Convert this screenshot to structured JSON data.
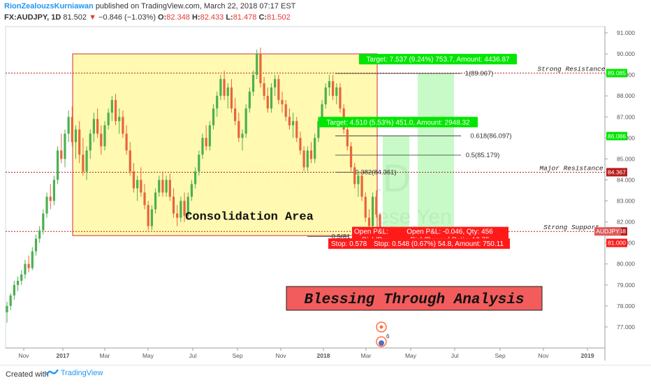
{
  "header": {
    "user": "RionZealouzsKurniawan",
    "published": "published on TradingView.com, March 22, 2018 07:17 EST",
    "symbol": "FX:AUDJPY, 1D",
    "last": "81.502",
    "change": "−0.846 (−1.03%)",
    "o_label": "O:",
    "o": "82.348",
    "h_label": "H:",
    "h": "82.433",
    "l_label": "L:",
    "l": "81.478",
    "c_label": "C:",
    "c": "81.502"
  },
  "footer": {
    "created": "Created with",
    "brand": "TradingView"
  },
  "colors": {
    "up": "#4caf50",
    "down": "#e8643c",
    "consolidation_fill": "#fff8a8",
    "consolidation_border": "#d32f2f",
    "target": "#00e600",
    "stop": "#ff1a1a",
    "resistance_line": "#b71c1c"
  },
  "chart_data": {
    "type": "candlestick",
    "symbol": "AUDJPY",
    "timeframe": "1D",
    "watermark": "AUDJPY, 1D",
    "watermark_sub": "Australian Dollar / Japanese Yen",
    "ylim": [
      76.0,
      91.3
    ],
    "y_ticks": [
      "91.000",
      "90.000",
      "89.000",
      "88.000",
      "87.000",
      "86.000",
      "85.000",
      "84.000",
      "83.000",
      "82.000",
      "81.000",
      "80.000",
      "79.000",
      "78.000",
      "77.000"
    ],
    "x_ticks": [
      "Nov",
      "2017",
      "Mar",
      "May",
      "Jul",
      "Sep",
      "Nov",
      "2018",
      "Mar",
      "May",
      "Jul",
      "Sep",
      "Nov",
      "2019"
    ],
    "ohlc_approx": [
      [
        77.7,
        78.2,
        77.2,
        78.0
      ],
      [
        78.0,
        78.6,
        77.8,
        78.5
      ],
      [
        78.5,
        79.2,
        78.3,
        79.0
      ],
      [
        79.0,
        79.4,
        78.7,
        79.2
      ],
      [
        79.2,
        79.7,
        79.0,
        79.5
      ],
      [
        79.5,
        80.2,
        79.3,
        80.0
      ],
      [
        80.0,
        80.4,
        79.6,
        79.8
      ],
      [
        79.8,
        80.8,
        79.7,
        80.6
      ],
      [
        80.6,
        81.4,
        80.4,
        81.2
      ],
      [
        81.2,
        81.8,
        81.0,
        81.6
      ],
      [
        81.6,
        82.6,
        81.4,
        82.4
      ],
      [
        82.4,
        83.4,
        82.2,
        83.2
      ],
      [
        83.2,
        83.8,
        82.6,
        83.0
      ],
      [
        83.0,
        84.2,
        82.8,
        84.0
      ],
      [
        84.0,
        85.6,
        83.8,
        85.4
      ],
      [
        85.4,
        86.2,
        84.8,
        85.0
      ],
      [
        85.0,
        86.4,
        84.6,
        86.2
      ],
      [
        86.2,
        87.3,
        85.8,
        87.0
      ],
      [
        87.0,
        87.5,
        85.6,
        85.8
      ],
      [
        85.8,
        86.6,
        85.0,
        86.4
      ],
      [
        86.4,
        86.8,
        84.8,
        85.2
      ],
      [
        85.2,
        86.0,
        84.2,
        84.4
      ],
      [
        84.4,
        85.6,
        84.0,
        85.4
      ],
      [
        85.4,
        86.4,
        85.0,
        86.2
      ],
      [
        86.2,
        87.2,
        85.8,
        86.9
      ],
      [
        86.9,
        87.4,
        86.0,
        86.2
      ],
      [
        86.2,
        86.6,
        85.2,
        85.6
      ],
      [
        85.6,
        86.8,
        85.4,
        86.6
      ],
      [
        86.6,
        87.4,
        86.4,
        87.2
      ],
      [
        87.2,
        88.0,
        86.8,
        87.8
      ],
      [
        87.8,
        88.1,
        86.6,
        86.8
      ],
      [
        86.8,
        87.4,
        86.2,
        87.0
      ],
      [
        87.0,
        87.3,
        86.0,
        86.2
      ],
      [
        86.2,
        86.6,
        85.2,
        85.4
      ],
      [
        85.4,
        85.8,
        84.2,
        84.4
      ],
      [
        84.4,
        84.8,
        83.4,
        83.6
      ],
      [
        83.6,
        84.2,
        83.0,
        84.0
      ],
      [
        84.0,
        84.6,
        83.2,
        83.4
      ],
      [
        83.4,
        83.8,
        82.6,
        82.8
      ],
      [
        82.8,
        83.0,
        81.6,
        81.8
      ],
      [
        81.8,
        82.8,
        81.6,
        82.6
      ],
      [
        82.6,
        83.6,
        82.4,
        83.4
      ],
      [
        83.4,
        84.2,
        83.2,
        84.0
      ],
      [
        84.0,
        84.4,
        83.2,
        83.4
      ],
      [
        83.4,
        84.2,
        83.2,
        84.0
      ],
      [
        84.0,
        84.3,
        83.0,
        83.2
      ],
      [
        83.2,
        83.6,
        82.2,
        82.4
      ],
      [
        82.4,
        82.8,
        81.8,
        82.2
      ],
      [
        82.2,
        83.2,
        82.0,
        83.0
      ],
      [
        83.0,
        83.4,
        82.0,
        82.3
      ],
      [
        82.3,
        83.4,
        82.2,
        83.2
      ],
      [
        83.2,
        84.0,
        83.0,
        83.8
      ],
      [
        83.8,
        84.6,
        83.6,
        84.4
      ],
      [
        84.4,
        85.4,
        84.2,
        85.2
      ],
      [
        85.2,
        86.2,
        85.0,
        86.0
      ],
      [
        86.0,
        86.6,
        85.4,
        85.6
      ],
      [
        85.6,
        86.8,
        85.4,
        86.6
      ],
      [
        86.6,
        87.6,
        86.4,
        87.4
      ],
      [
        87.4,
        88.2,
        87.0,
        88.0
      ],
      [
        88.0,
        89.0,
        87.8,
        88.8
      ],
      [
        88.8,
        89.2,
        87.8,
        88.0
      ],
      [
        88.0,
        88.6,
        87.4,
        88.4
      ],
      [
        88.4,
        88.8,
        87.2,
        87.4
      ],
      [
        87.4,
        87.9,
        86.6,
        86.8
      ],
      [
        86.8,
        87.2,
        85.8,
        86.0
      ],
      [
        86.0,
        86.4,
        85.4,
        86.2
      ],
      [
        86.2,
        87.6,
        86.0,
        87.4
      ],
      [
        87.4,
        88.4,
        87.2,
        88.2
      ],
      [
        88.2,
        89.2,
        88.0,
        89.0
      ],
      [
        89.0,
        90.2,
        88.8,
        90.0
      ],
      [
        90.0,
        90.3,
        88.4,
        88.6
      ],
      [
        88.6,
        88.9,
        87.8,
        88.0
      ],
      [
        88.0,
        88.4,
        87.2,
        87.4
      ],
      [
        87.4,
        88.6,
        87.2,
        88.4
      ],
      [
        88.4,
        89.0,
        88.0,
        88.8
      ],
      [
        88.8,
        89.0,
        87.6,
        87.8
      ],
      [
        87.8,
        88.2,
        87.2,
        87.6
      ],
      [
        87.6,
        87.8,
        86.8,
        87.0
      ],
      [
        87.0,
        87.4,
        86.4,
        86.6
      ],
      [
        86.6,
        87.2,
        86.0,
        86.8
      ],
      [
        86.8,
        87.0,
        85.8,
        86.0
      ],
      [
        86.0,
        86.3,
        85.2,
        85.4
      ],
      [
        85.4,
        85.6,
        84.4,
        84.6
      ],
      [
        84.6,
        85.6,
        84.4,
        85.4
      ],
      [
        85.4,
        85.8,
        84.8,
        85.0
      ],
      [
        85.0,
        86.2,
        84.8,
        86.0
      ],
      [
        86.0,
        87.0,
        85.8,
        86.8
      ],
      [
        86.8,
        87.8,
        86.6,
        87.6
      ],
      [
        87.6,
        88.6,
        87.4,
        88.4
      ],
      [
        88.4,
        89.0,
        88.0,
        88.7
      ],
      [
        88.7,
        89.0,
        87.8,
        88.0
      ],
      [
        88.0,
        88.6,
        87.6,
        88.4
      ],
      [
        88.4,
        88.6,
        87.2,
        87.4
      ],
      [
        87.4,
        87.6,
        86.2,
        86.4
      ],
      [
        86.4,
        86.6,
        85.4,
        85.6
      ],
      [
        85.6,
        85.8,
        84.4,
        84.6
      ],
      [
        84.6,
        84.8,
        83.6,
        83.8
      ],
      [
        83.8,
        84.4,
        83.2,
        84.2
      ],
      [
        84.2,
        84.4,
        83.0,
        83.2
      ],
      [
        83.2,
        83.4,
        82.0,
        82.2
      ],
      [
        82.2,
        82.6,
        81.4,
        81.8
      ],
      [
        81.8,
        83.4,
        81.6,
        83.2
      ],
      [
        83.2,
        83.5,
        82.2,
        82.35
      ],
      [
        82.35,
        82.43,
        81.48,
        81.5
      ]
    ],
    "consolidation_zone": {
      "label": "Consolidation Area",
      "top": 90.0,
      "bottom": 81.35,
      "start": "Dec 2016",
      "end": "Mar 2018"
    },
    "levels": [
      {
        "label": "Strong Resistance",
        "price": 89.085
      },
      {
        "label": "Major Resistance",
        "price": 84.367
      },
      {
        "label": "Strong Support",
        "price": 81.548
      }
    ],
    "fib_levels": [
      {
        "label": "1(89.067)",
        "price": 89.067
      },
      {
        "label": "0.618(86.097)",
        "price": 86.097
      },
      {
        "label": "0.5(85.179)",
        "price": 85.179
      },
      {
        "label": "0.382(84.361)",
        "price": 84.361
      },
      {
        "label": "0.5(81.3",
        "price": 81.3
      }
    ],
    "positions": [
      {
        "target_label": "Target: 7.537 (9.24%) 753.7, Amount: 4436.87",
        "target_price": 89.085,
        "pnl": "Open P&L: -0.046, Qty: 456",
        "rr": "Risk/Reward Ratio: 13.75",
        "stop_label": "Stop: 0.548 (0.67%) 54.8, Amount: 750.11",
        "stop_price": 81.0
      },
      {
        "target_label": "Target: 4.510 (5.53%) 451.0, Amount: 2948.32",
        "target_price": 86.086,
        "pnl": "Open P&L:",
        "rr": "Risk/Rewa",
        "stop_label": "Stop: 0.578",
        "stop_price": 81.0
      }
    ],
    "axis_price_labels": [
      {
        "price": 89.085,
        "text": "89.085",
        "color": "#00e600"
      },
      {
        "price": 86.086,
        "text": "86.086",
        "color": "#00e600"
      },
      {
        "price": 84.367,
        "text": "84.367",
        "color": "#b71c1c"
      },
      {
        "price": 81.548,
        "text": "81.548",
        "color": "#b71c1c"
      },
      {
        "price": 81.548,
        "text": "AUDJPY",
        "color": "#e05a5a"
      },
      {
        "price": 81.0,
        "text": "81.000",
        "color": "#ff1a1a"
      }
    ],
    "events_badge": "6",
    "banner": "Blessing Through Analysis"
  }
}
